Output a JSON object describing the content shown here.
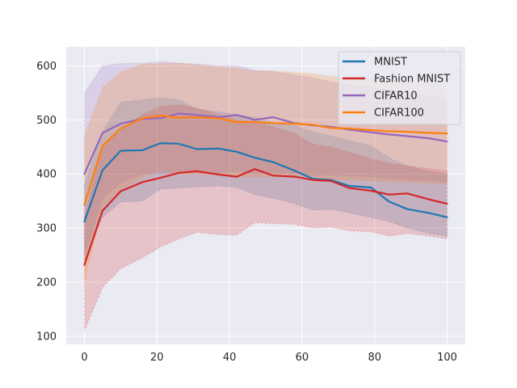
{
  "chart_data": {
    "type": "line",
    "title": "",
    "xlabel": "",
    "ylabel": "",
    "xlim": [
      -5,
      105
    ],
    "ylim": [
      85,
      635
    ],
    "xticks": [
      0,
      20,
      40,
      60,
      80,
      100
    ],
    "yticks": [
      100,
      200,
      300,
      400,
      500,
      600
    ],
    "grid": true,
    "legend_position": "upper right",
    "x": [
      0,
      5,
      10,
      16,
      21,
      26,
      31,
      37,
      42,
      47,
      52,
      58,
      63,
      68,
      73,
      79,
      84,
      89,
      95,
      100
    ],
    "series": [
      {
        "name": "MNIST",
        "color": "#1f77b4",
        "values": [
          312,
          407,
          443,
          444,
          457,
          456,
          446,
          447,
          441,
          430,
          422,
          406,
          391,
          389,
          378,
          375,
          349,
          335,
          328,
          320
        ],
        "upper": [
          380,
          478,
          533,
          537,
          541,
          537,
          520,
          515,
          510,
          505,
          495,
          490,
          478,
          470,
          462,
          452,
          430,
          415,
          405,
          400
        ],
        "lower": [
          240,
          320,
          348,
          350,
          372,
          374,
          376,
          378,
          375,
          362,
          355,
          345,
          333,
          335,
          328,
          320,
          312,
          300,
          290,
          285
        ]
      },
      {
        "name": "Fashion MNIST",
        "color": "#d62728",
        "values": [
          232,
          332,
          368,
          385,
          393,
          402,
          405,
          399,
          395,
          409,
          397,
          395,
          389,
          387,
          374,
          369,
          362,
          364,
          353,
          345
        ],
        "upper": [
          320,
          452,
          480,
          510,
          525,
          528,
          522,
          510,
          500,
          497,
          487,
          475,
          455,
          450,
          440,
          428,
          420,
          415,
          410,
          405
        ],
        "lower": [
          110,
          190,
          225,
          245,
          265,
          280,
          292,
          288,
          287,
          310,
          308,
          307,
          300,
          302,
          295,
          293,
          285,
          290,
          285,
          280
        ]
      },
      {
        "name": "CIFAR10",
        "color": "#9467bd",
        "values": [
          400,
          476,
          493,
          502,
          503,
          512,
          509,
          505,
          509,
          500,
          505,
          494,
          490,
          487,
          482,
          477,
          473,
          470,
          466,
          460
        ],
        "upper": [
          550,
          600,
          604,
          605,
          608,
          605,
          603,
          600,
          600,
          592,
          590,
          583,
          578,
          570,
          565,
          560,
          555,
          550,
          545,
          540
        ],
        "lower": [
          250,
          355,
          385,
          400,
          400,
          402,
          405,
          402,
          405,
          400,
          402,
          400,
          398,
          398,
          396,
          395,
          392,
          390,
          388,
          385
        ]
      },
      {
        "name": "CIFAR100",
        "color": "#ff7f0e",
        "values": [
          343,
          452,
          484,
          503,
          508,
          504,
          505,
          503,
          496,
          496,
          494,
          493,
          491,
          485,
          484,
          481,
          479,
          478,
          476,
          475
        ],
        "upper": [
          470,
          560,
          588,
          603,
          604,
          605,
          602,
          598,
          595,
          590,
          590,
          588,
          585,
          580,
          578,
          575,
          572,
          570,
          568,
          565
        ],
        "lower": [
          200,
          340,
          370,
          395,
          405,
          400,
          400,
          398,
          395,
          395,
          395,
          397,
          395,
          390,
          390,
          388,
          386,
          385,
          383,
          383
        ]
      }
    ]
  }
}
